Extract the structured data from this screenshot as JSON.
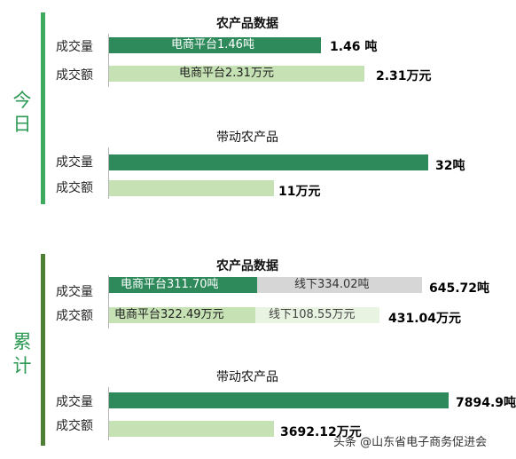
{
  "colors": {
    "dark_green": "#2e8a5a",
    "light_green": "#c6e2b4",
    "gray": "#d6d6d6",
    "side_light": "#3daa5e",
    "side_dark": "#4e7f33"
  },
  "sections": [
    {
      "label": "今日"
    },
    {
      "label": "累计"
    }
  ],
  "watermark": "头条 @山东省电子商务促进会",
  "chart_data": [
    {
      "type": "bar",
      "title": "农产品数据",
      "categories": [
        "成交量",
        "成交额"
      ],
      "series": [
        {
          "name": "电商平台",
          "values": [
            1.46,
            2.31
          ]
        }
      ],
      "bar_labels": [
        "电商平台1.46吨",
        "电商平台2.31万元"
      ],
      "value_labels": [
        "1.46 吨",
        "2.31万元"
      ],
      "units": [
        "吨",
        "万元"
      ]
    },
    {
      "type": "bar",
      "title": "带动农产品",
      "categories": [
        "成交量",
        "成交额"
      ],
      "values": [
        32,
        11
      ],
      "value_labels": [
        "32吨",
        "11万元"
      ],
      "units": [
        "吨",
        "万元"
      ]
    },
    {
      "type": "bar",
      "title": "农产品数据",
      "stacked": true,
      "categories": [
        "成交量",
        "成交额"
      ],
      "series": [
        {
          "name": "电商平台",
          "values": [
            311.7,
            322.49
          ]
        },
        {
          "name": "线下",
          "values": [
            334.02,
            108.55
          ]
        }
      ],
      "segment_labels": [
        [
          "电商平台311.70吨",
          "线下334.02吨"
        ],
        [
          "电商平台322.49万元",
          "线下108.55万元"
        ]
      ],
      "value_labels": [
        "645.72吨",
        "431.04万元"
      ],
      "units": [
        "吨",
        "万元"
      ]
    },
    {
      "type": "bar",
      "title": "带动农产品",
      "categories": [
        "成交量",
        "成交额"
      ],
      "values": [
        7894.9,
        3692.12
      ],
      "value_labels": [
        "7894.9吨",
        "3692.12万元"
      ],
      "units": [
        "吨",
        "万元"
      ]
    }
  ]
}
